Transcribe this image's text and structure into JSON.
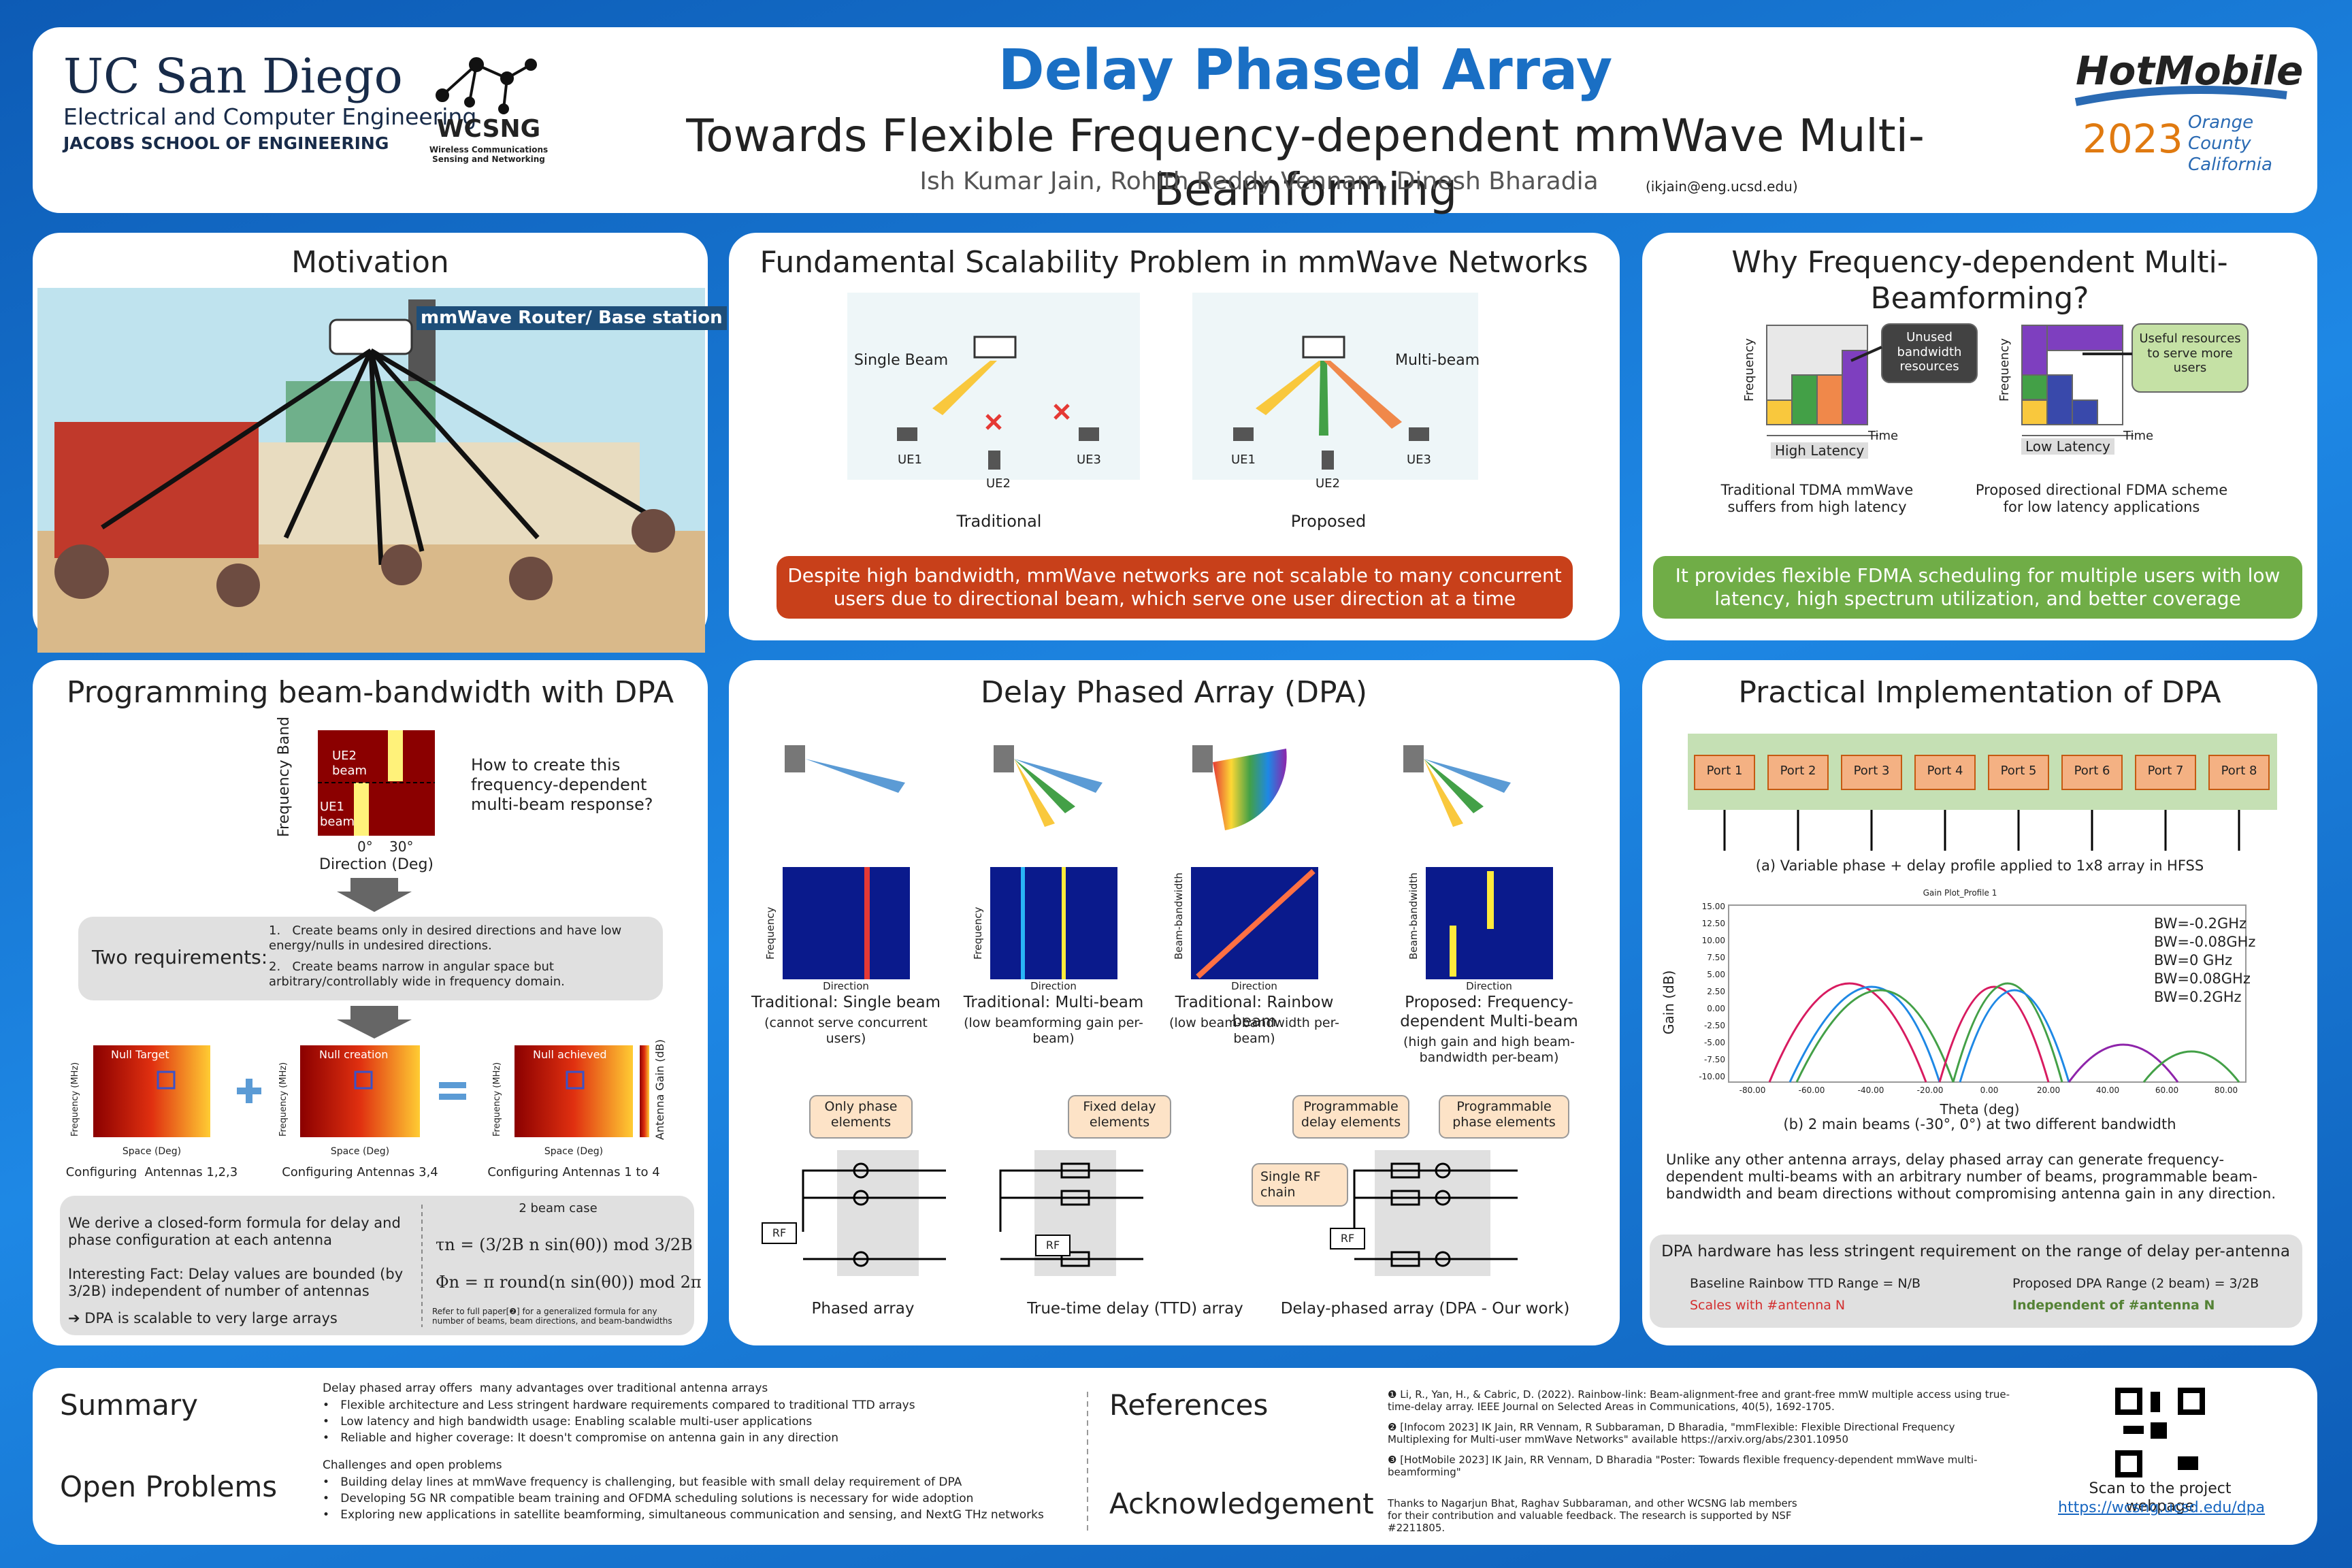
{
  "header": {
    "title": "Delay Phased Array",
    "subtitle": "Towards Flexible Frequency-dependent mmWave Multi-Beamforming",
    "authors": "Ish Kumar Jain, Rohith Reddy Vennam, Dinesh Bharadia",
    "email": "(ikjain@eng.ucsd.edu)",
    "ucsd": {
      "name": "UC San Diego",
      "department": "Electrical and Computer Engineering",
      "school": "JACOBS SCHOOL OF ENGINEERING"
    },
    "wcsng": {
      "name": "WCSNG",
      "full": "Wireless Communications Sensing and Networking"
    },
    "conference": {
      "name": "HotMobile",
      "year": "2023",
      "location": "Orange County California"
    }
  },
  "motivation": {
    "title": "Motivation",
    "router_label": "mmWave Router/ Base station"
  },
  "scalability": {
    "title": "Fundamental Scalability Problem in mmWave Networks",
    "single_beam": "Single Beam",
    "multi_beam": "Multi-beam",
    "users": [
      "UE1",
      "UE2",
      "UE3"
    ],
    "traditional": "Traditional",
    "proposed": "Proposed",
    "message": "Despite high bandwidth, mmWave networks are not scalable to many concurrent users due to directional beam, which serve one user direction at a time"
  },
  "why": {
    "title": "Why Frequency-dependent Multi-Beamforming?",
    "unused": "Unused bandwidth resources",
    "useful": "Useful resources to serve more users",
    "frequency_axis": "Frequency",
    "time_axis": "Time",
    "high_latency": "High Latency",
    "low_latency": "Low Latency",
    "tdma_caption": "Traditional TDMA mmWave suffers from high latency",
    "fdma_caption": "Proposed directional FDMA scheme for low latency applications",
    "message": "It provides flexible FDMA scheduling for multiple users with low latency, high spectrum utilization, and better coverage"
  },
  "programming": {
    "title": "Programming beam-bandwidth with DPA",
    "y_axis": "Frequency Band",
    "x_axis": "Direction (Deg)",
    "angles": [
      "0°",
      "30°"
    ],
    "beams": [
      "UE1 beam",
      "UE2 beam"
    ],
    "question": "How to create this frequency-dependent multi-beam response?",
    "requirements_label": "Two requirements:",
    "requirements": [
      "1.   Create beams only in desired directions and have low energy/nulls in undesired directions.",
      "2.   Create beams narrow in angular space but arbitrary/controllably wide in frequency domain."
    ],
    "heatmaps": [
      {
        "label": "Null Target",
        "caption": "Configuring  Antennas 1,2,3"
      },
      {
        "label": "Null creation",
        "caption": "Configuring Antennas 3,4"
      },
      {
        "label": "Null achieved",
        "caption": "Configuring Antennas 1 to 4"
      }
    ],
    "heatmap_y_axis": "Frequency (MHz)",
    "heatmap_x_axis": "Space (Deg)",
    "colorbar_label": "Antenna Gain (dB)",
    "formula_text": "We derive a closed-form formula for delay and phase configuration at each antenna",
    "fact": "Interesting Fact: Delay values are bounded (by 3/2B) independent of number of antennas",
    "scalable": "➔ DPA is scalable to very large arrays",
    "case": "2 beam case",
    "tau": "τn = (3/2B n sin(θ0)) mod 3/2B",
    "phi": "Φn = π round(n sin(θ0)) mod 2π",
    "note": "Refer to full paper[❷] for a generalized formula for any number of beams, beam directions, and beam-bandwidths"
  },
  "dpa": {
    "title": "Delay Phased Array (DPA)",
    "designs": [
      {
        "name": "Traditional: Single beam",
        "detail": "(cannot serve concurrent users)"
      },
      {
        "name": "Traditional: Multi-beam",
        "detail": "(low beamforming gain per-beam)"
      },
      {
        "name": "Traditional: Rainbow beam",
        "detail": "(low beam-bandwidth per-beam)"
      },
      {
        "name": "Proposed: Frequency-dependent Multi-beam",
        "detail": "(high gain and high beam-bandwidth per-beam)"
      }
    ],
    "frequency_axis": "Frequency",
    "direction_axis": "Direction",
    "bandwidth_axis": "Beam-bandwidth",
    "elements": {
      "phase": "Only phase elements",
      "delay": "Fixed delay elements",
      "prog_delay": "Programmable delay elements",
      "prog_phase": "Programmable phase elements",
      "rf_chain": "Single RF chain",
      "rf": "RF"
    },
    "architectures": [
      "Phased array",
      "True-time delay (TTD) array",
      "Delay-phased array (DPA - Our work)"
    ]
  },
  "practical": {
    "title": "Practical Implementation of DPA",
    "ports": [
      "Port 1",
      "Port 2",
      "Port 3",
      "Port 4",
      "Port 5",
      "Port 6",
      "Port 7",
      "Port 8"
    ],
    "caption_a": "(a) Variable phase + delay profile applied to 1x8 array in HFSS",
    "plot_title": "Gain Plot_Profile 1",
    "y_axis": "Gain (dB)",
    "x_axis": "Theta (deg)",
    "yticks": [
      "15.00",
      "12.50",
      "10.00",
      "7.50",
      "5.00",
      "2.50",
      "0.00",
      "-2.50",
      "-5.00",
      "-7.50",
      "-10.00"
    ],
    "xticks": [
      "-80.00",
      "-60.00",
      "-40.00",
      "-20.00",
      "0.00",
      "20.00",
      "40.00",
      "60.00",
      "80.00"
    ],
    "bandwidths": [
      "BW=-0.2GHz",
      "BW=-0.08GHz",
      "BW=0 GHz",
      "BW=0.08GHz",
      "BW=0.2GHz"
    ],
    "caption_b": "(b) 2 main beams (-30°, 0°) at two different bandwidth",
    "description": "Unlike any other antenna arrays, delay phased array can generate frequency-dependent multi-beams with an arbitrary number of beams, programmable beam-bandwidth and beam directions without compromising antenna gain in any direction.",
    "hardware_title": "DPA hardware has less stringent requirement on the range of delay per-antenna",
    "baseline": "Baseline Rainbow TTD Range = N/B",
    "baseline_note": "Scales with #antenna N",
    "proposed": "Proposed DPA Range (2 beam) = 3/2B",
    "proposed_note": "Independent of #antenna N"
  },
  "footer": {
    "summary_title": "Summary",
    "open_title": "Open Problems",
    "summary_intro": "Delay phased array offers  many advantages over traditional antenna arrays",
    "summary_points": [
      "•   Flexible architecture and Less stringent hardware requirements compared to traditional TTD arrays",
      "•   Low latency and high bandwidth usage: Enabling scalable multi-user applications",
      "•   Reliable and higher coverage: It doesn't compromise on antenna gain in any direction"
    ],
    "open_intro": "Challenges and open problems",
    "open_points": [
      "•   Building delay lines at mmWave frequency is challenging, but feasible with small delay requirement of DPA",
      "•   Developing 5G NR compatible beam training and OFDMA scheduling solutions is necessary for wide adoption",
      "•   Exploring new applications in satellite beamforming, simultaneous communication and sensing, and NextG THz networks"
    ],
    "references_title": "References",
    "references": [
      "❶ Li, R., Yan, H., & Cabric, D. (2022). Rainbow-link: Beam-alignment-free and grant-free mmW multiple access using true-time-delay array. IEEE Journal on Selected Areas in Communications, 40(5), 1692-1705.",
      "❷ [Infocom 2023] IK Jain, RR Vennam, R Subbaraman, D Bharadia, \"mmFlexible: Flexible Directional Frequency Multiplexing for Multi-user mmWave Networks\" available https://arxiv.org/abs/2301.10950",
      "❸ [HotMobile 2023] IK Jain, RR Vennam, D Bharadia \"Poster: Towards flexible frequency-dependent mmWave multi-beamforming\""
    ],
    "ack_title": "Acknowledgement",
    "ack": "Thanks to Nagarjun Bhat, Raghav Subbaraman, and other WCSNG lab members for their contribution and valuable feedback. The research is supported by NSF #2211805.",
    "scan": "Scan to the project webpage",
    "url": "https://wcsng.ucsd.edu/dpa"
  }
}
